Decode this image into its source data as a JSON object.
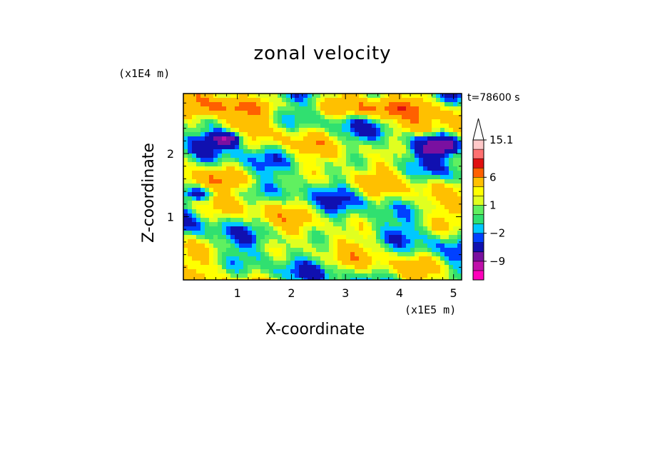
{
  "chart_data": {
    "type": "heatmap",
    "title": "zonal velocity",
    "xlabel": "X-coordinate",
    "ylabel": "Z-coordinate",
    "x_unit": "(x1E5 m)",
    "y_unit": "(x1E4 m)",
    "time_label": "t=78600 s",
    "xlim": [
      0,
      5.15
    ],
    "ylim": [
      0,
      2.95
    ],
    "x_ticks": [
      1,
      2,
      3,
      4,
      5
    ],
    "y_ticks": [
      1,
      2
    ],
    "colorbar": {
      "labels": [
        "15.1",
        "6",
        "1",
        "−2",
        "−9"
      ],
      "label_values": [
        15.1,
        6,
        1,
        -2,
        -9
      ],
      "levels": [
        -15,
        -12,
        -9,
        -6,
        -3,
        -2,
        -1,
        0,
        1,
        2,
        3,
        6,
        9,
        12,
        15.1
      ],
      "colors": [
        "#ff00bb",
        "#c010aa",
        "#7a10a0",
        "#1010b0",
        "#0040ff",
        "#00c8ff",
        "#30e070",
        "#60f060",
        "#e0ff20",
        "#ffff00",
        "#ffc000",
        "#ff6000",
        "#e01010",
        "#ff7070",
        "#ffc8c8"
      ],
      "extend_max": true
    },
    "grid": false
  }
}
